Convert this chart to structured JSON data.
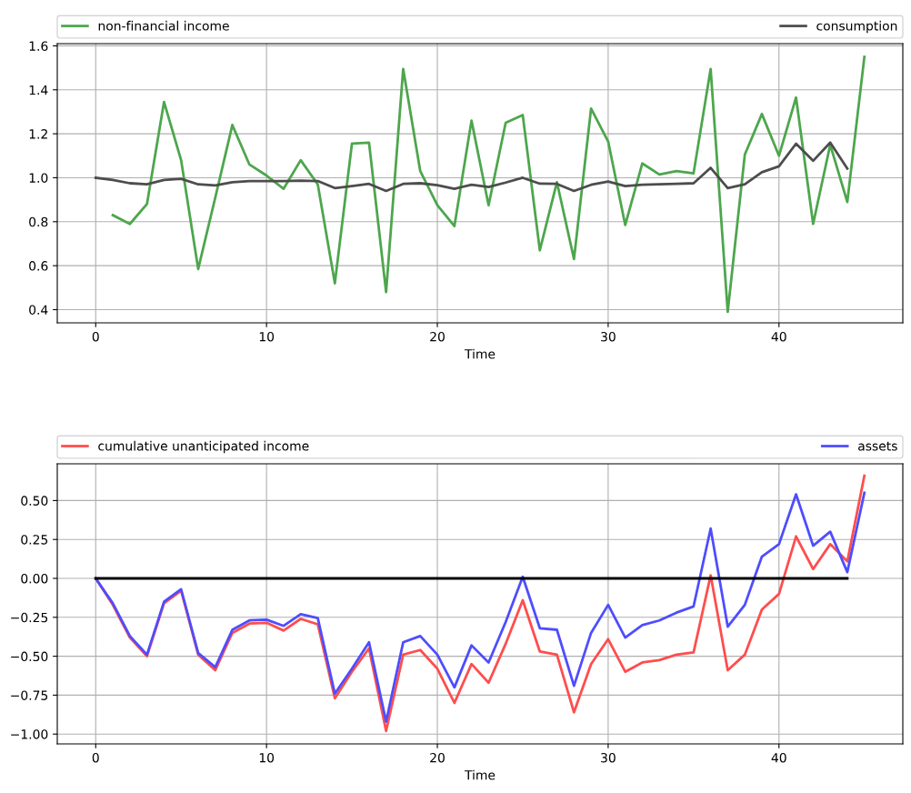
{
  "chart_data": [
    {
      "type": "line",
      "xlabel": "Time",
      "xlim": [
        -2.25,
        47.25
      ],
      "xticks": [
        0,
        10,
        20,
        30,
        40
      ],
      "ylim": [
        0.34,
        1.61
      ],
      "yticks": [
        {
          "value": 0.4,
          "label": "0.4"
        },
        {
          "value": 0.6,
          "label": "0.6"
        },
        {
          "value": 0.8,
          "label": "0.8"
        },
        {
          "value": 1.0,
          "label": "1.0"
        },
        {
          "value": 1.2,
          "label": "1.2"
        },
        {
          "value": 1.4,
          "label": "1.4"
        },
        {
          "value": 1.6,
          "label": "1.6"
        }
      ],
      "grid": true,
      "legend": "top",
      "series": [
        {
          "name": "non-financial income",
          "color": "#4da64d",
          "x": [
            1,
            2,
            3,
            4,
            5,
            6,
            7,
            8,
            9,
            10,
            11,
            12,
            13,
            14,
            15,
            16,
            17,
            18,
            19,
            20,
            21,
            22,
            23,
            24,
            25,
            26,
            27,
            28,
            29,
            30,
            31,
            32,
            33,
            34,
            35,
            36,
            37,
            38,
            39,
            40,
            41,
            42,
            43,
            44,
            45
          ],
          "values": [
            0.83,
            0.79,
            0.88,
            1.345,
            1.08,
            0.585,
            0.91,
            1.24,
            1.06,
            1.01,
            0.95,
            1.08,
            0.97,
            0.52,
            1.155,
            1.16,
            0.48,
            1.495,
            1.03,
            0.875,
            0.78,
            1.26,
            0.875,
            1.25,
            1.285,
            0.67,
            0.98,
            0.63,
            1.315,
            1.165,
            0.785,
            1.065,
            1.015,
            1.03,
            1.02,
            1.495,
            0.39,
            1.105,
            1.29,
            1.1,
            1.365,
            0.79,
            1.15,
            0.89,
            1.55
          ]
        },
        {
          "name": "consumption",
          "color": "#4d4d4d",
          "x": [
            0,
            1,
            2,
            3,
            4,
            5,
            6,
            7,
            8,
            9,
            10,
            11,
            12,
            13,
            14,
            15,
            16,
            17,
            18,
            19,
            20,
            21,
            22,
            23,
            24,
            25,
            26,
            27,
            28,
            29,
            30,
            31,
            32,
            33,
            34,
            35,
            36,
            37,
            38,
            39,
            40,
            41,
            42,
            43,
            44
          ],
          "values": [
            1.0,
            0.99,
            0.975,
            0.97,
            0.99,
            0.995,
            0.97,
            0.965,
            0.98,
            0.985,
            0.985,
            0.985,
            0.987,
            0.985,
            0.953,
            0.962,
            0.972,
            0.94,
            0.972,
            0.975,
            0.966,
            0.95,
            0.968,
            0.958,
            0.978,
            1.0,
            0.973,
            0.972,
            0.94,
            0.968,
            0.983,
            0.962,
            0.968,
            0.97,
            0.972,
            0.975,
            1.045,
            0.953,
            0.97,
            1.025,
            1.052,
            1.155,
            1.077,
            1.16,
            1.042
          ]
        }
      ]
    },
    {
      "type": "line",
      "xlabel": "Time",
      "xlim": [
        -2.25,
        47.25
      ],
      "xticks": [
        0,
        10,
        20,
        30,
        40
      ],
      "ylim": [
        -1.063,
        0.736
      ],
      "yticks": [
        {
          "value": -1.0,
          "label": "−1.00"
        },
        {
          "value": -0.75,
          "label": "−0.75"
        },
        {
          "value": -0.5,
          "label": "−0.50"
        },
        {
          "value": -0.25,
          "label": "−0.25"
        },
        {
          "value": 0.0,
          "label": "0.00"
        },
        {
          "value": 0.25,
          "label": "0.25"
        },
        {
          "value": 0.5,
          "label": "0.50"
        }
      ],
      "grid": true,
      "legend": "top",
      "series": [
        {
          "name": "cumulative unanticipated income",
          "color": "#ff4d4d",
          "x": [
            0,
            1,
            2,
            3,
            4,
            5,
            6,
            7,
            8,
            9,
            10,
            11,
            12,
            13,
            14,
            15,
            16,
            17,
            18,
            19,
            20,
            21,
            22,
            23,
            24,
            25,
            26,
            27,
            28,
            29,
            30,
            31,
            32,
            33,
            34,
            35,
            36,
            37,
            38,
            39,
            40,
            41,
            42,
            43,
            44,
            45
          ],
          "values": [
            0,
            -0.17,
            -0.38,
            -0.5,
            -0.16,
            -0.08,
            -0.49,
            -0.59,
            -0.35,
            -0.29,
            -0.285,
            -0.335,
            -0.26,
            -0.295,
            -0.77,
            -0.6,
            -0.45,
            -0.98,
            -0.49,
            -0.46,
            -0.58,
            -0.8,
            -0.55,
            -0.67,
            -0.42,
            -0.14,
            -0.47,
            -0.49,
            -0.86,
            -0.55,
            -0.39,
            -0.6,
            -0.54,
            -0.525,
            -0.49,
            -0.475,
            0.02,
            -0.59,
            -0.49,
            -0.2,
            -0.1,
            0.27,
            0.06,
            0.22,
            0.11,
            0.66
          ]
        },
        {
          "name": "assets",
          "color": "#4d4dff",
          "x": [
            0,
            1,
            2,
            3,
            4,
            5,
            6,
            7,
            8,
            9,
            10,
            11,
            12,
            13,
            14,
            15,
            16,
            17,
            18,
            19,
            20,
            21,
            22,
            23,
            24,
            25,
            26,
            27,
            28,
            29,
            30,
            31,
            32,
            33,
            34,
            35,
            36,
            37,
            38,
            39,
            40,
            41,
            42,
            43,
            44,
            45
          ],
          "values": [
            0,
            -0.16,
            -0.37,
            -0.49,
            -0.15,
            -0.07,
            -0.48,
            -0.57,
            -0.33,
            -0.27,
            -0.265,
            -0.305,
            -0.23,
            -0.255,
            -0.74,
            -0.58,
            -0.41,
            -0.92,
            -0.41,
            -0.37,
            -0.49,
            -0.7,
            -0.43,
            -0.54,
            -0.28,
            0.01,
            -0.32,
            -0.33,
            -0.69,
            -0.35,
            -0.17,
            -0.38,
            -0.3,
            -0.27,
            -0.22,
            -0.18,
            0.32,
            -0.31,
            -0.17,
            0.14,
            0.22,
            0.54,
            0.21,
            0.3,
            0.04,
            0.55
          ]
        },
        {
          "color": "#000000",
          "x": [
            0,
            44
          ],
          "values": [
            0,
            0
          ]
        }
      ]
    }
  ]
}
